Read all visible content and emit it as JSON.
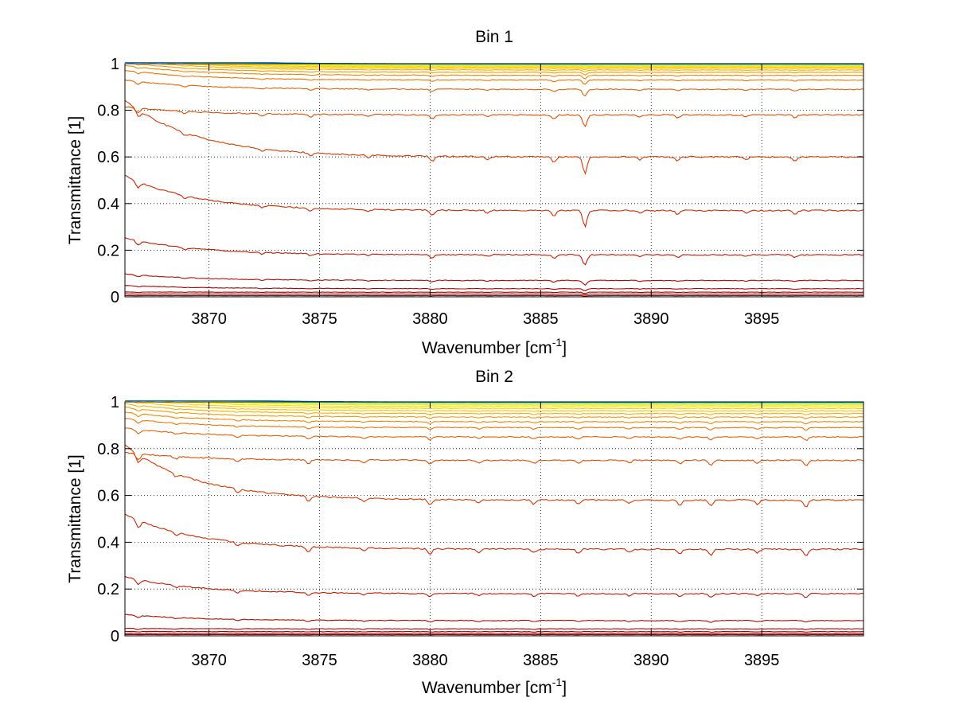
{
  "chart_data": [
    {
      "type": "line",
      "title": "Bin 1",
      "xlabel": "Wavenumber [cm",
      "xlabel_sup": "-1",
      "xlabel_end": "]",
      "ylabel": "Transmittance [1]",
      "xlim": [
        3866.2,
        3899.6
      ],
      "ylim": [
        0,
        1
      ],
      "xticks": [
        3870,
        3875,
        3880,
        3885,
        3890,
        3895
      ],
      "yticks": [
        0,
        0.2,
        0.4,
        0.6,
        0.8,
        1
      ],
      "ytick_labels": [
        "0",
        "0.2",
        "0.4",
        "0.6",
        "0.8",
        "1"
      ],
      "grid": true,
      "series_levels": [
        0.0,
        0.005,
        0.012,
        0.02,
        0.035,
        0.07,
        0.18,
        0.37,
        0.6,
        0.78,
        0.89,
        0.93,
        0.95,
        0.963,
        0.973,
        0.98,
        0.985,
        0.989,
        0.992,
        0.994,
        0.996,
        0.997,
        0.998,
        0.999
      ],
      "series_colors": [
        "#800000",
        "#8a0000",
        "#960000",
        "#a20000",
        "#ae0000",
        "#b80800",
        "#c41800",
        "#d02800",
        "#dc3800",
        "#e24c00",
        "#e86000",
        "#ee7400",
        "#f28800",
        "#f59a00",
        "#f8ae00",
        "#fac000",
        "#fcd000",
        "#fde000",
        "#f0e820",
        "#d8f040",
        "#a8f070",
        "#60e0b0",
        "#30c0e0",
        "#0080ff"
      ],
      "absorption_lines": [
        {
          "x": 3866.8,
          "depth": 1.0
        },
        {
          "x": 3868.9,
          "depth": 0.5
        },
        {
          "x": 3872.4,
          "depth": 0.4
        },
        {
          "x": 3874.6,
          "depth": 0.5
        },
        {
          "x": 3877.2,
          "depth": 0.35
        },
        {
          "x": 3880.1,
          "depth": 0.8
        },
        {
          "x": 3882.6,
          "depth": 0.4
        },
        {
          "x": 3885.6,
          "depth": 0.9
        },
        {
          "x": 3887.0,
          "depth": 2.5
        },
        {
          "x": 3889.5,
          "depth": 0.4
        },
        {
          "x": 3891.2,
          "depth": 0.6
        },
        {
          "x": 3894.3,
          "depth": 0.4
        },
        {
          "x": 3896.5,
          "depth": 0.6
        }
      ]
    },
    {
      "type": "line",
      "title": "Bin 2",
      "xlabel": "Wavenumber [cm",
      "xlabel_sup": "-1",
      "xlabel_end": "]",
      "ylabel": "Transmittance [1]",
      "xlim": [
        3866.2,
        3899.6
      ],
      "ylim": [
        0,
        1
      ],
      "xticks": [
        3870,
        3875,
        3880,
        3885,
        3890,
        3895
      ],
      "yticks": [
        0,
        0.2,
        0.4,
        0.6,
        0.8,
        1
      ],
      "ytick_labels": [
        "0",
        "0.2",
        "0.4",
        "0.6",
        "0.8",
        "1"
      ],
      "grid": true,
      "series_levels": [
        0.0,
        0.005,
        0.01,
        0.018,
        0.03,
        0.065,
        0.18,
        0.37,
        0.58,
        0.75,
        0.85,
        0.89,
        0.915,
        0.935,
        0.95,
        0.962,
        0.972,
        0.98,
        0.986,
        0.99,
        0.994,
        0.996,
        0.998,
        0.999
      ],
      "series_colors": [
        "#800000",
        "#8a0000",
        "#960000",
        "#a20000",
        "#ae0000",
        "#b80800",
        "#c41800",
        "#d02800",
        "#dc3800",
        "#e24c00",
        "#e86000",
        "#ee7400",
        "#f28800",
        "#f59a00",
        "#f8ae00",
        "#fac000",
        "#fcd000",
        "#fde000",
        "#f0e820",
        "#d8f040",
        "#a8f070",
        "#60e0b0",
        "#30c0e0",
        "#0080ff"
      ],
      "absorption_lines": [
        {
          "x": 3866.8,
          "depth": 1.2
        },
        {
          "x": 3868.5,
          "depth": 0.5
        },
        {
          "x": 3871.3,
          "depth": 0.6
        },
        {
          "x": 3874.5,
          "depth": 0.8
        },
        {
          "x": 3877.0,
          "depth": 0.5
        },
        {
          "x": 3880.0,
          "depth": 0.8
        },
        {
          "x": 3882.2,
          "depth": 0.5
        },
        {
          "x": 3884.7,
          "depth": 0.6
        },
        {
          "x": 3886.7,
          "depth": 0.6
        },
        {
          "x": 3889.0,
          "depth": 0.5
        },
        {
          "x": 3891.3,
          "depth": 0.7
        },
        {
          "x": 3892.7,
          "depth": 0.9
        },
        {
          "x": 3894.8,
          "depth": 0.6
        },
        {
          "x": 3897.0,
          "depth": 1.0
        }
      ]
    }
  ]
}
